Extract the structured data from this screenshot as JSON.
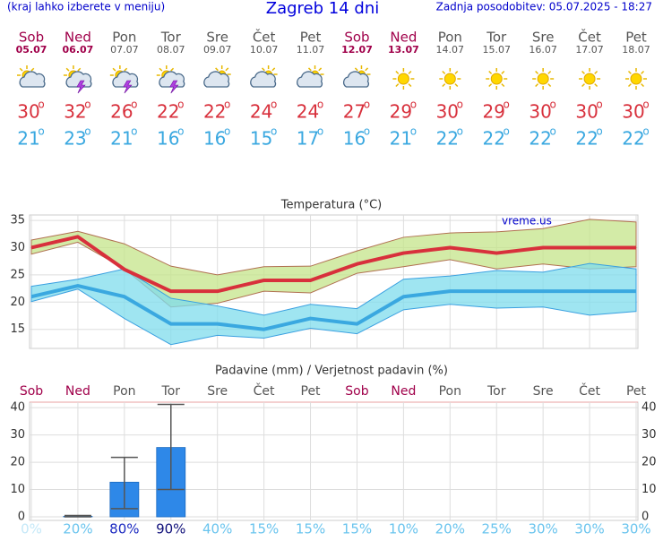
{
  "header": {
    "note": "(kraj lahko izberete v meniju)",
    "title": "Zagreb 14 dni",
    "updated": "Zadnja posodobitev: 05.07.2025 - 18:27"
  },
  "days": [
    {
      "name": "Sob",
      "date": "05.07",
      "weekend": true
    },
    {
      "name": "Ned",
      "date": "06.07",
      "weekend": true
    },
    {
      "name": "Pon",
      "date": "07.07",
      "weekend": false
    },
    {
      "name": "Tor",
      "date": "08.07",
      "weekend": false
    },
    {
      "name": "Sre",
      "date": "09.07",
      "weekend": false
    },
    {
      "name": "Čet",
      "date": "10.07",
      "weekend": false
    },
    {
      "name": "Pet",
      "date": "11.07",
      "weekend": false
    },
    {
      "name": "Sob",
      "date": "12.07",
      "weekend": true
    },
    {
      "name": "Ned",
      "date": "13.07",
      "weekend": true
    },
    {
      "name": "Pon",
      "date": "14.07",
      "weekend": false
    },
    {
      "name": "Tor",
      "date": "15.07",
      "weekend": false
    },
    {
      "name": "Sre",
      "date": "16.07",
      "weekend": false
    },
    {
      "name": "Čet",
      "date": "17.07",
      "weekend": false
    },
    {
      "name": "Pet",
      "date": "18.07",
      "weekend": false
    }
  ],
  "degree": "o",
  "chart_data": [
    {
      "type": "band-line",
      "title": "Temperatura (°C)",
      "watermark": "vreme.us",
      "ylim": [
        11.5,
        36
      ],
      "yticks": [
        15,
        20,
        25,
        30,
        35
      ],
      "grid": true,
      "bands": [
        {
          "color": "#c4e48a",
          "stroke": "#b07050",
          "upper": [
            31.4,
            33,
            30.7,
            26.6,
            25,
            26.5,
            26.6,
            29.4,
            31.9,
            32.7,
            32.9,
            33.5,
            35.2,
            34.7
          ],
          "lower": [
            28.8,
            31,
            26.1,
            19.1,
            19.8,
            22,
            21.7,
            25.3,
            26.5,
            27.8,
            26.1,
            27,
            26.1,
            26.5
          ]
        },
        {
          "color": "#7fdcec",
          "stroke": "#3aa0e0",
          "upper": [
            22.9,
            24.2,
            26.1,
            20.7,
            19.3,
            17.6,
            19.6,
            18.8,
            24.2,
            24.8,
            25.8,
            25.5,
            27.1,
            26.1
          ],
          "lower": [
            20.1,
            22.4,
            17,
            12.2,
            13.9,
            13.4,
            15.2,
            14.2,
            18.6,
            19.6,
            18.9,
            19.1,
            17.6,
            18.3
          ]
        }
      ],
      "series": [
        {
          "color": "#d8303c",
          "values": [
            30,
            32,
            26,
            22,
            22,
            24,
            24,
            27,
            29,
            30,
            29,
            30,
            30,
            30
          ]
        },
        {
          "color": "#3aa8e0",
          "values": [
            21,
            23,
            21,
            16,
            16,
            15,
            17,
            16,
            21,
            22,
            22,
            22,
            22,
            22
          ]
        }
      ]
    },
    {
      "type": "bar",
      "title": "Padavine (mm) / Verjetnost padavin (%)",
      "categories": [
        "Sob",
        "Ned",
        "Pon",
        "Tor",
        "Sre",
        "Čet",
        "Pet",
        "Sob",
        "Ned",
        "Pon",
        "Tor",
        "Sre",
        "Čet",
        "Pet"
      ],
      "values": [
        0,
        0.2,
        12.7,
        25.4,
        0,
        0,
        0,
        0,
        0,
        0,
        0,
        0,
        0,
        0
      ],
      "error_low": [
        null,
        0,
        3,
        10,
        null,
        null,
        null,
        null,
        null,
        null,
        null,
        null,
        null,
        null
      ],
      "error_high": [
        null,
        0.5,
        21.8,
        41.2,
        null,
        null,
        null,
        null,
        null,
        null,
        null,
        null,
        null,
        null
      ],
      "color": "#2e88e8",
      "ylim": [
        -1.3,
        42
      ],
      "yticks": [
        0,
        10,
        20,
        30,
        40
      ],
      "grid": true,
      "probability": {
        "values": [
          0,
          20,
          80,
          90,
          40,
          15,
          15,
          15,
          10,
          20,
          25,
          30,
          30,
          30
        ],
        "value_labels": [
          "0%",
          "20%",
          "80%",
          "90%",
          "40%",
          "15%",
          "15%",
          "15%",
          "10%",
          "20%",
          "25%",
          "30%",
          "30%",
          "30%"
        ]
      }
    }
  ]
}
